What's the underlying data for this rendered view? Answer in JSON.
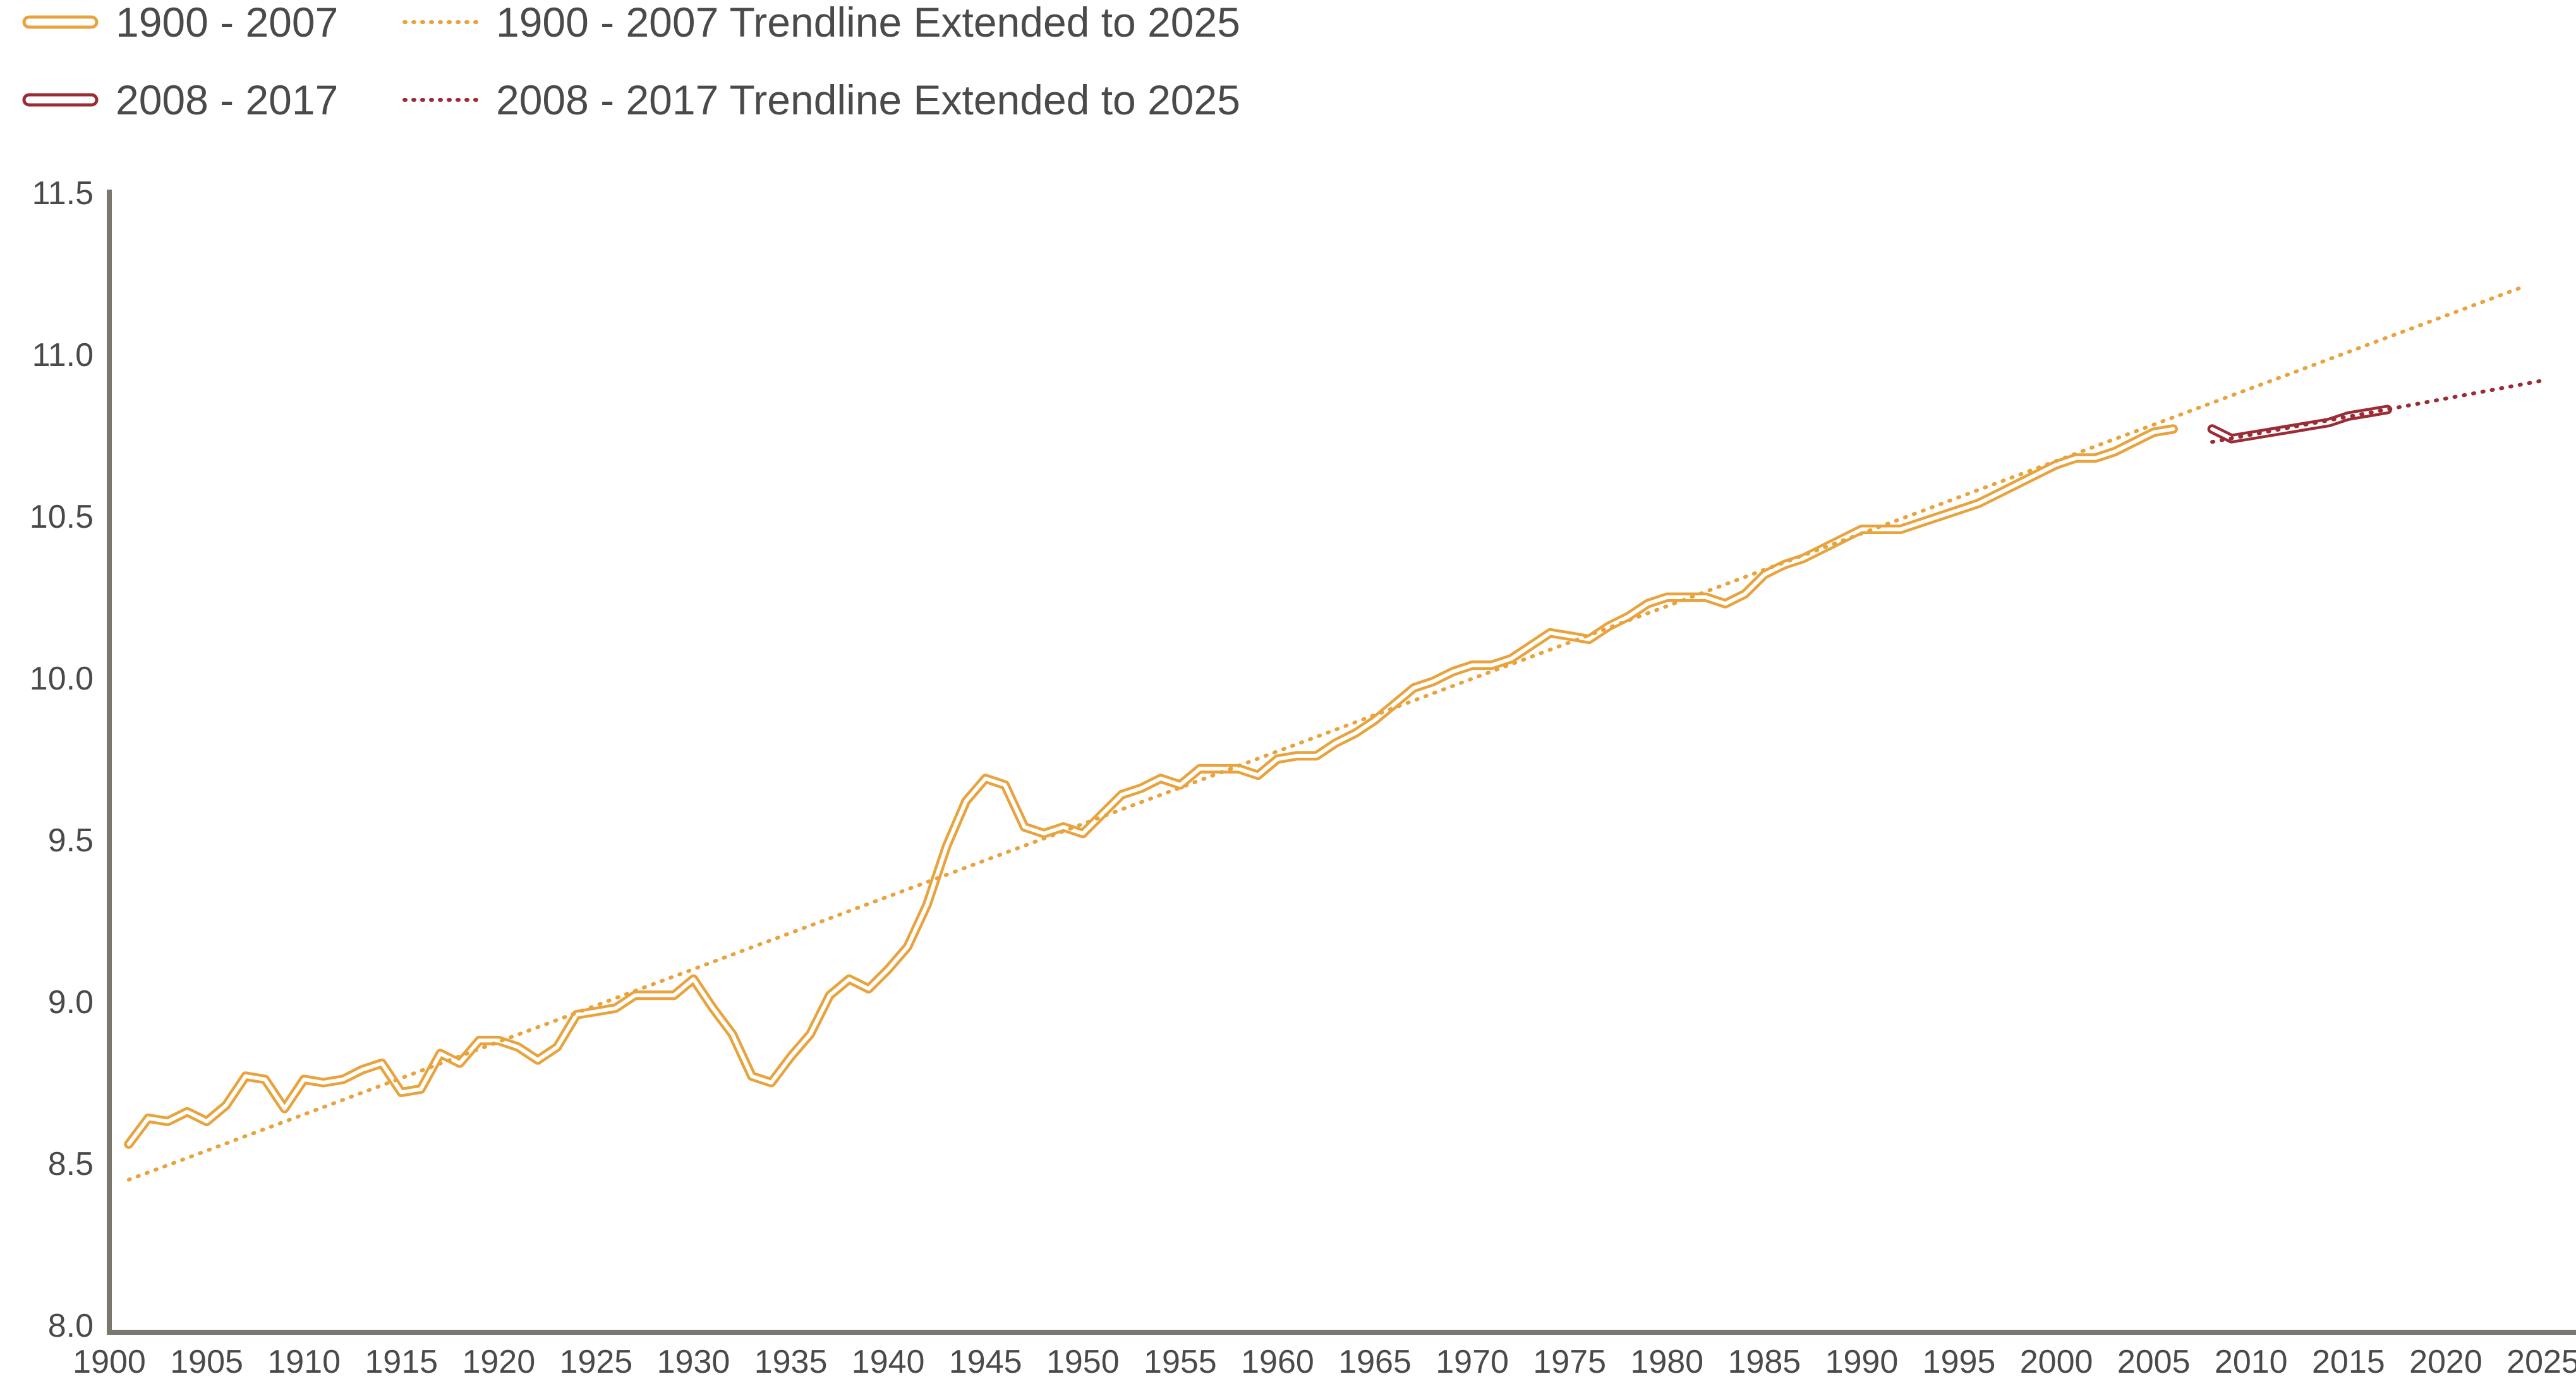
{
  "chart_data": {
    "type": "line",
    "title": "",
    "xlabel": "",
    "ylabel": "",
    "xlim": [
      1900,
      2025
    ],
    "ylim": [
      8.0,
      11.5
    ],
    "x_ticks": [
      1900,
      1905,
      1910,
      1915,
      1920,
      1925,
      1930,
      1935,
      1940,
      1945,
      1950,
      1955,
      1960,
      1965,
      1970,
      1975,
      1980,
      1985,
      1990,
      1995,
      2000,
      2005,
      2010,
      2015,
      2020,
      2025
    ],
    "y_ticks": [
      "8.0",
      "8.5",
      "9.0",
      "9.5",
      "10.0",
      "10.5",
      "11.0",
      "11.5"
    ],
    "grid": false,
    "legend_position": "top-left",
    "legend": [
      {
        "label": "1900 - 2007",
        "style": "double-line",
        "color": "#E8A33D"
      },
      {
        "label": "1900 - 2007 Trendline Extended to 2025",
        "style": "dotted",
        "color": "#E8A33D"
      },
      {
        "label": "2008 - 2017",
        "style": "double-line",
        "color": "#9B2B35"
      },
      {
        "label": "2008 - 2017 Trendline Extended to 2025",
        "style": "dotted",
        "color": "#9B2B35"
      }
    ],
    "series": [
      {
        "name": "1900 - 2007",
        "style": "double-line",
        "color": "#E8A33D",
        "x": [
          1901,
          1902,
          1903,
          1904,
          1905,
          1906,
          1907,
          1908,
          1909,
          1910,
          1911,
          1912,
          1913,
          1914,
          1915,
          1916,
          1917,
          1918,
          1919,
          1920,
          1921,
          1922,
          1923,
          1924,
          1925,
          1926,
          1927,
          1928,
          1929,
          1930,
          1931,
          1932,
          1933,
          1934,
          1935,
          1936,
          1937,
          1938,
          1939,
          1940,
          1941,
          1942,
          1943,
          1944,
          1945,
          1946,
          1947,
          1948,
          1949,
          1950,
          1951,
          1952,
          1953,
          1954,
          1955,
          1956,
          1957,
          1958,
          1959,
          1960,
          1961,
          1962,
          1963,
          1964,
          1965,
          1966,
          1967,
          1968,
          1969,
          1970,
          1971,
          1972,
          1973,
          1974,
          1975,
          1976,
          1977,
          1978,
          1979,
          1980,
          1981,
          1982,
          1983,
          1984,
          1985,
          1986,
          1987,
          1988,
          1989,
          1990,
          1991,
          1992,
          1993,
          1994,
          1995,
          1996,
          1997,
          1998,
          1999,
          2000,
          2001,
          2002,
          2003,
          2004,
          2005,
          2006
        ],
        "values": [
          8.56,
          8.64,
          8.63,
          8.66,
          8.63,
          8.68,
          8.77,
          8.76,
          8.67,
          8.76,
          8.75,
          8.76,
          8.79,
          8.81,
          8.72,
          8.73,
          8.84,
          8.81,
          8.88,
          8.88,
          8.86,
          8.82,
          8.86,
          8.96,
          8.97,
          8.98,
          9.02,
          9.02,
          9.02,
          9.07,
          8.98,
          8.9,
          8.77,
          8.75,
          8.83,
          8.9,
          9.02,
          9.07,
          9.04,
          9.1,
          9.17,
          9.3,
          9.48,
          9.62,
          9.69,
          9.67,
          9.54,
          9.52,
          9.54,
          9.52,
          9.58,
          9.64,
          9.66,
          9.69,
          9.67,
          9.72,
          9.72,
          9.72,
          9.7,
          9.75,
          9.76,
          9.76,
          9.8,
          9.83,
          9.87,
          9.92,
          9.97,
          9.99,
          10.02,
          10.04,
          10.04,
          10.06,
          10.1,
          10.14,
          10.13,
          10.12,
          10.16,
          10.19,
          10.23,
          10.25,
          10.25,
          10.25,
          10.23,
          10.26,
          10.32,
          10.35,
          10.37,
          10.4,
          10.43,
          10.46,
          10.46,
          10.46,
          10.48,
          10.5,
          10.52,
          10.54,
          10.57,
          10.6,
          10.63,
          10.66,
          10.68,
          10.68,
          10.7,
          10.73,
          10.76,
          10.77
        ]
      },
      {
        "name": "1900 - 2007 Trendline Extended to 2025",
        "style": "dotted",
        "color": "#E8A33D",
        "x": [
          1901,
          2024
        ],
        "values": [
          8.45,
          11.21
        ]
      },
      {
        "name": "2008 - 2017",
        "style": "double-line",
        "color": "#9B2B35",
        "x": [
          2008,
          2009,
          2010,
          2011,
          2012,
          2013,
          2014,
          2015,
          2016,
          2017
        ],
        "values": [
          10.77,
          10.74,
          10.75,
          10.76,
          10.77,
          10.78,
          10.79,
          10.81,
          10.82,
          10.83
        ]
      },
      {
        "name": "2008 - 2017 Trendline Extended to 2025",
        "style": "dotted",
        "color": "#9B2B35",
        "x": [
          2008,
          2025
        ],
        "values": [
          10.73,
          10.92
        ]
      }
    ]
  }
}
